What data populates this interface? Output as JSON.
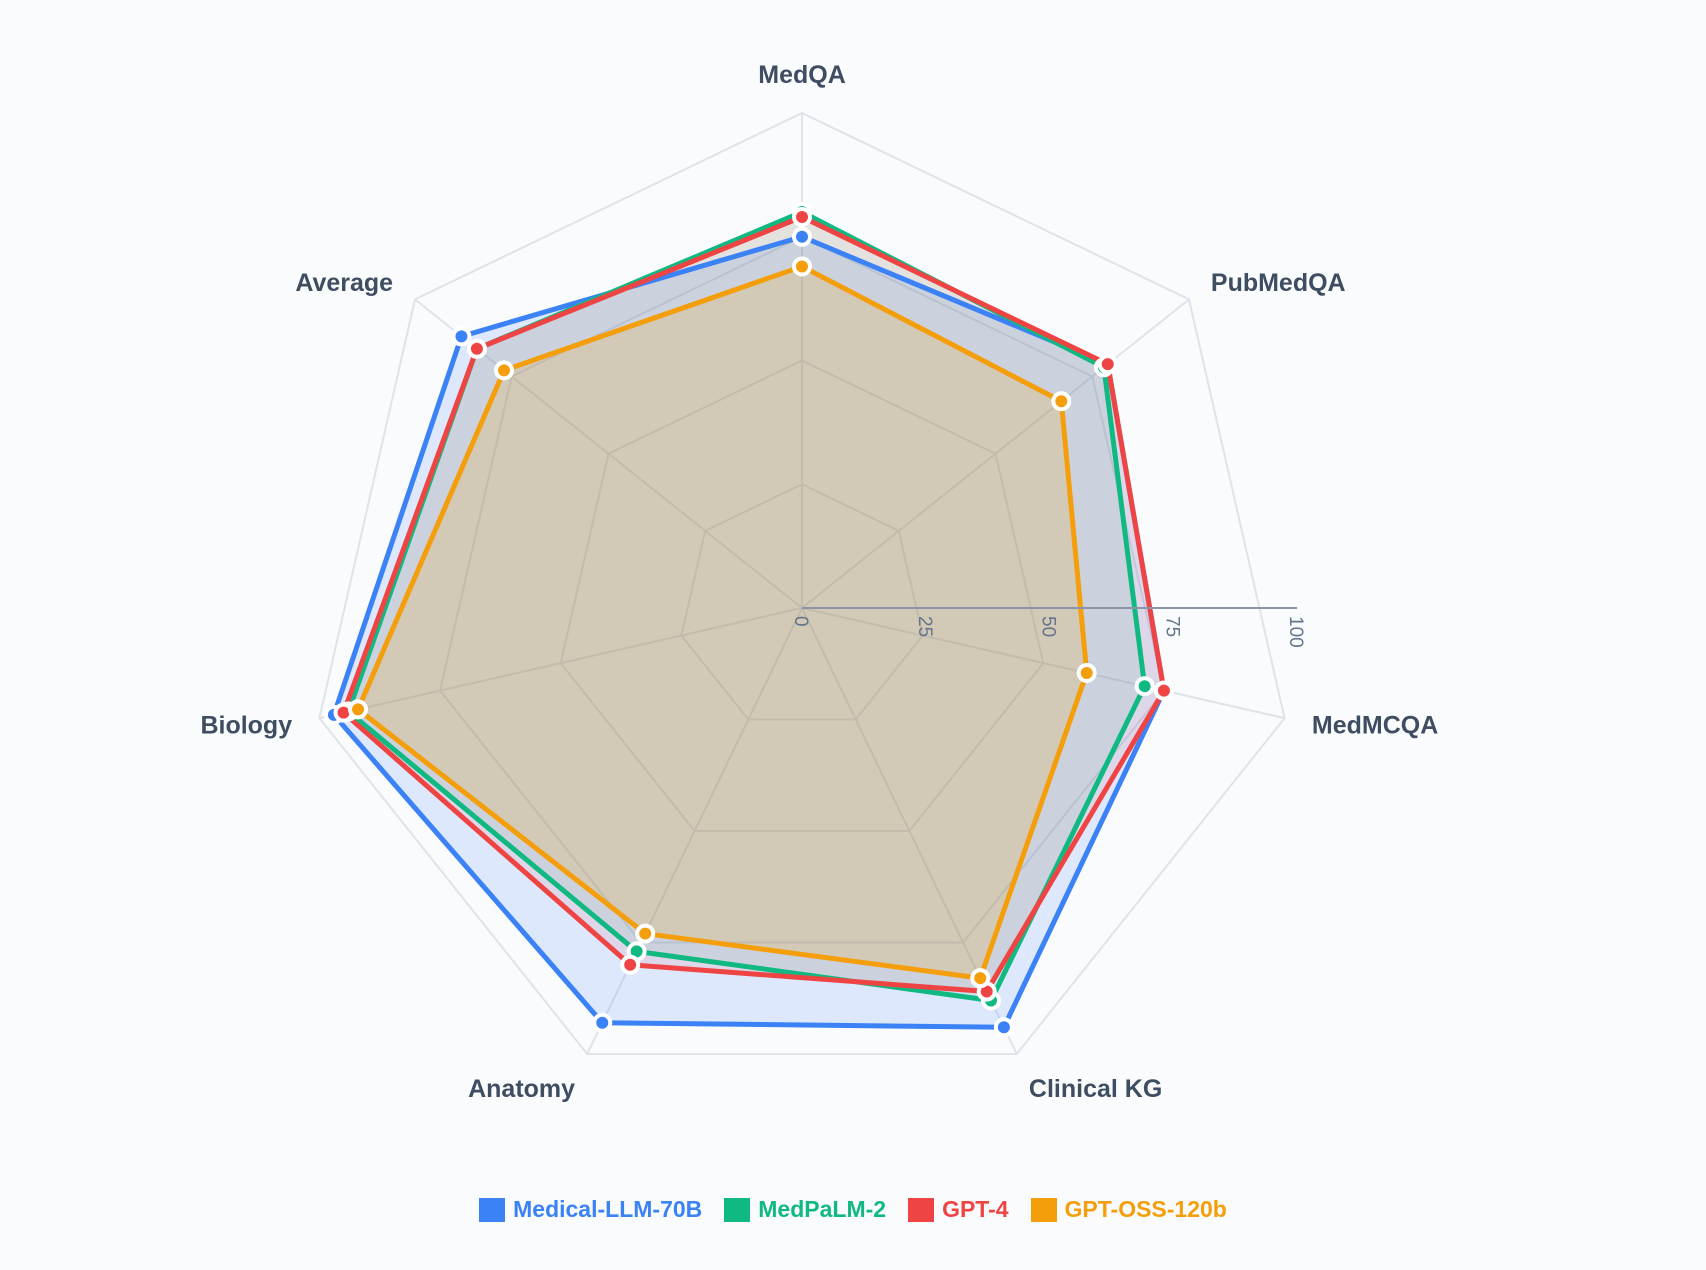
{
  "chart_data": {
    "type": "radar",
    "title": "",
    "categories": [
      "MedQA",
      "PubMedQA",
      "MedMCQA",
      "Clinical KG",
      "Anatomy",
      "Biology",
      "Average"
    ],
    "radial_axis": {
      "range": [
        0,
        100
      ],
      "ticks": [
        0,
        25,
        50,
        75,
        100
      ]
    },
    "grid": true,
    "legend_position": "bottom",
    "series": [
      {
        "name": "Medical-LLM-70B",
        "color": "#3b82f6",
        "fill": "rgba(59,130,246,0.15)",
        "values": [
          75,
          79,
          75,
          94,
          93,
          97,
          88
        ]
      },
      {
        "name": "MedPaLM-2",
        "color": "#10b981",
        "fill": "rgba(16,185,129,0.10)",
        "values": [
          80,
          78,
          71,
          88,
          77,
          94,
          84
        ]
      },
      {
        "name": "GPT-4",
        "color": "#ef4444",
        "fill": "rgba(239,68,68,0.10)",
        "values": [
          79,
          79,
          75,
          86,
          80,
          95,
          84
        ]
      },
      {
        "name": "GPT-OSS-120b",
        "color": "#f59e0b",
        "fill": "rgba(245,158,11,0.18)",
        "values": [
          69,
          67,
          59,
          83,
          73,
          92,
          77
        ]
      }
    ]
  },
  "legend": {
    "items": [
      {
        "label": "Medical-LLM-70B",
        "color": "#3b82f6"
      },
      {
        "label": "MedPaLM-2",
        "color": "#10b981"
      },
      {
        "label": "GPT-4",
        "color": "#ef4444"
      },
      {
        "label": "GPT-OSS-120b",
        "color": "#f59e0b"
      }
    ]
  }
}
